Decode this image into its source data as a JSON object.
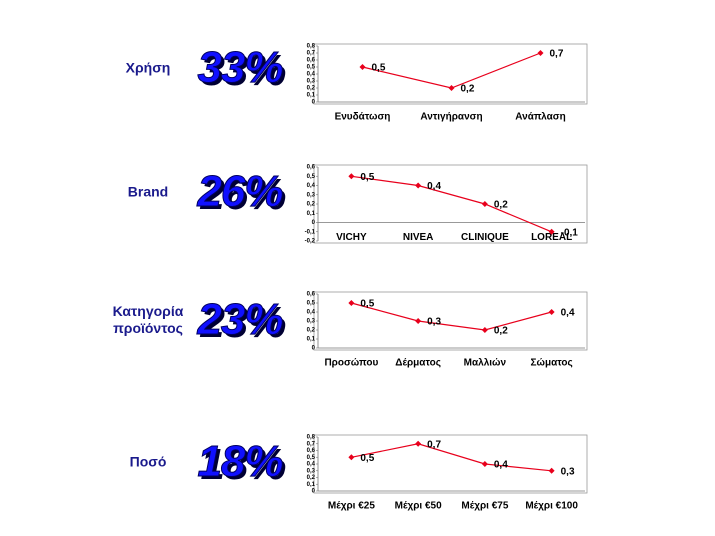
{
  "rows": [
    {
      "label": "Χρήση",
      "percent": "33%"
    },
    {
      "label": "Brand",
      "percent": "26%"
    },
    {
      "label": "Κατηγορία προϊόντος",
      "percent": "23%"
    },
    {
      "label": "Ποσό",
      "percent": "18%"
    }
  ],
  "chart_data": [
    {
      "type": "line",
      "categories": [
        "Ενυδάτωση",
        "Αντιγήρανση",
        "Ανάπλαση"
      ],
      "values": [
        0.5,
        0.2,
        0.7
      ],
      "value_labels": [
        "0,5",
        "0,2",
        "0,7"
      ],
      "color": "#e8001c",
      "ylim": [
        0,
        0.8
      ],
      "yticks": [
        0,
        {
          "value": 0.1,
          "label": "0,1"
        },
        {
          "value": 0.2,
          "label": "0,2"
        },
        {
          "value": 0.3,
          "label": "0,3"
        },
        {
          "value": 0.4,
          "label": "0,4"
        },
        {
          "value": 0.5,
          "label": "0,5"
        },
        {
          "value": 0.6,
          "label": "0,6"
        },
        {
          "value": 0.7,
          "label": "0,7"
        },
        {
          "value": 0.8,
          "label": "0,8"
        }
      ]
    },
    {
      "type": "line",
      "categories": [
        "VICHY",
        "NIVEA",
        "CLINIQUE",
        "LOREAL"
      ],
      "values": [
        0.5,
        0.4,
        0.2,
        -0.1
      ],
      "value_labels": [
        "0,5",
        "0,4",
        "0,2",
        "-0,1"
      ],
      "color": "#e8001c",
      "ylim": [
        -0.2,
        0.6
      ],
      "yticks": [
        {
          "value": -0.2,
          "label": "-0,2"
        },
        {
          "value": -0.1,
          "label": "-0,1"
        },
        0,
        {
          "value": 0.1,
          "label": "0,1"
        },
        {
          "value": 0.2,
          "label": "0,2"
        },
        {
          "value": 0.3,
          "label": "0,3"
        },
        {
          "value": 0.4,
          "label": "0,4"
        },
        {
          "value": 0.5,
          "label": "0,5"
        },
        {
          "value": 0.6,
          "label": "0,6"
        }
      ]
    },
    {
      "type": "line",
      "categories": [
        "Προσώπου",
        "Δέρματος",
        "Μαλλιών",
        "Σώματος"
      ],
      "values": [
        0.5,
        0.3,
        0.2,
        0.4
      ],
      "value_labels": [
        "0,5",
        "0,3",
        "0,2",
        "0,4"
      ],
      "color": "#e8001c",
      "ylim": [
        0,
        0.6
      ],
      "yticks": [
        0,
        {
          "value": 0.1,
          "label": "0,1"
        },
        {
          "value": 0.2,
          "label": "0,2"
        },
        {
          "value": 0.3,
          "label": "0,3"
        },
        {
          "value": 0.4,
          "label": "0,4"
        },
        {
          "value": 0.5,
          "label": "0,5"
        },
        {
          "value": 0.6,
          "label": "0,6"
        }
      ]
    },
    {
      "type": "line",
      "categories": [
        "Μέχρι €25",
        "Μέχρι €50",
        "Μέχρι €75",
        "Μέχρι €100"
      ],
      "values": [
        0.5,
        0.7,
        0.4,
        0.3
      ],
      "value_labels": [
        "0,5",
        "0,7",
        "0,4",
        "0,3"
      ],
      "color": "#e8001c",
      "ylim": [
        0,
        0.8
      ],
      "yticks": [
        0,
        {
          "value": 0.1,
          "label": "0,1"
        },
        {
          "value": 0.2,
          "label": "0,2"
        },
        {
          "value": 0.3,
          "label": "0,3"
        },
        {
          "value": 0.4,
          "label": "0,4"
        },
        {
          "value": 0.5,
          "label": "0,5"
        },
        {
          "value": 0.6,
          "label": "0,6"
        },
        {
          "value": 0.7,
          "label": "0,7"
        },
        {
          "value": 0.8,
          "label": "0,8"
        }
      ]
    }
  ]
}
